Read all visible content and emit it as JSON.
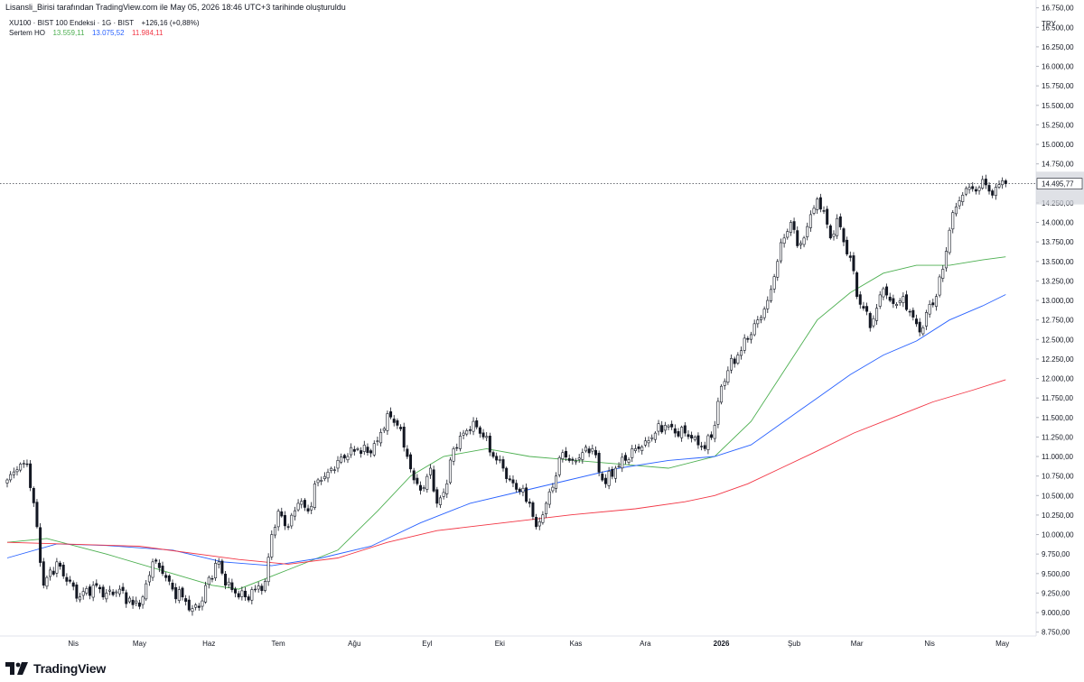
{
  "header": {
    "credit": "Lisansli_Birisi tarafından TradingView.com ile May 05, 2026 18:46 UTC+3 tarihinde oluşturuldu"
  },
  "legend": {
    "symbol_line": "XU100 · BIST 100 Endeksi · 1G · BIST",
    "change": "+126,16 (+0,88%)",
    "indicator_name": "Sertem HO",
    "ma_values": [
      {
        "text": "13.559,11",
        "color": "#4caf50"
      },
      {
        "text": "13.075,52",
        "color": "#2962ff"
      },
      {
        "text": "11.984,11",
        "color": "#f23645"
      }
    ]
  },
  "footer": {
    "brand": "TradingView",
    "logo_icon": "tradingview-logo-icon"
  },
  "chart_data": {
    "type": "candlestick",
    "currency": "TRY",
    "last_price_label": "14.495,77",
    "last_price": 14495.77,
    "ylim": [
      8700,
      16850
    ],
    "y_ticks": [
      {
        "v": 8750,
        "label": "8.750,00"
      },
      {
        "v": 9000,
        "label": "9.000,00"
      },
      {
        "v": 9250,
        "label": "9.250,00"
      },
      {
        "v": 9500,
        "label": "9.500,00"
      },
      {
        "v": 9750,
        "label": "9.750,00"
      },
      {
        "v": 10000,
        "label": "10.000,00"
      },
      {
        "v": 10250,
        "label": "10.250,00"
      },
      {
        "v": 10500,
        "label": "10.500,00"
      },
      {
        "v": 10750,
        "label": "10.750,00"
      },
      {
        "v": 11000,
        "label": "11.000,00"
      },
      {
        "v": 11250,
        "label": "11.250,00"
      },
      {
        "v": 11500,
        "label": "11.500,00"
      },
      {
        "v": 11750,
        "label": "11.750,00"
      },
      {
        "v": 12000,
        "label": "12.000,00"
      },
      {
        "v": 12250,
        "label": "12.250,00"
      },
      {
        "v": 12500,
        "label": "12.500,00"
      },
      {
        "v": 12750,
        "label": "12.750,00"
      },
      {
        "v": 13000,
        "label": "13.000,00"
      },
      {
        "v": 13250,
        "label": "13.250,00"
      },
      {
        "v": 13500,
        "label": "13.500,00"
      },
      {
        "v": 13750,
        "label": "13.750,00"
      },
      {
        "v": 14000,
        "label": "14.000,00"
      },
      {
        "v": 14250,
        "label": "14.250,00"
      },
      {
        "v": 14750,
        "label": "14.750,00"
      },
      {
        "v": 15000,
        "label": "15.000,00"
      },
      {
        "v": 15250,
        "label": "15.250,00"
      },
      {
        "v": 15500,
        "label": "15.500,00"
      },
      {
        "v": 15750,
        "label": "15.750,00"
      },
      {
        "v": 16000,
        "label": "16.000,00"
      },
      {
        "v": 16250,
        "label": "16.250,00"
      },
      {
        "v": 16500,
        "label": "16.500,00"
      },
      {
        "v": 16750,
        "label": "16.750,00"
      }
    ],
    "x_month_labels": [
      {
        "label": "Nis",
        "bar": 20
      },
      {
        "label": "May",
        "bar": 40
      },
      {
        "label": "Haz",
        "bar": 61
      },
      {
        "label": "Tem",
        "bar": 82
      },
      {
        "label": "Ağu",
        "bar": 105
      },
      {
        "label": "Eyl",
        "bar": 127
      },
      {
        "label": "Eki",
        "bar": 149
      },
      {
        "label": "Kas",
        "bar": 172
      },
      {
        "label": "Ara",
        "bar": 193
      },
      {
        "label": "2026",
        "bar": 216
      },
      {
        "label": "Şub",
        "bar": 238
      },
      {
        "label": "Mar",
        "bar": 257
      },
      {
        "label": "Nis",
        "bar": 279
      },
      {
        "label": "May",
        "bar": 301
      }
    ],
    "close_anchors": [
      [
        0,
        10700
      ],
      [
        3,
        10830
      ],
      [
        6,
        10900
      ],
      [
        9,
        10100
      ],
      [
        11,
        9350
      ],
      [
        12,
        9450
      ],
      [
        15,
        9650
      ],
      [
        18,
        9400
      ],
      [
        22,
        9200
      ],
      [
        26,
        9350
      ],
      [
        30,
        9250
      ],
      [
        34,
        9300
      ],
      [
        38,
        9100
      ],
      [
        41,
        9200
      ],
      [
        44,
        9650
      ],
      [
        47,
        9500
      ],
      [
        50,
        9300
      ],
      [
        53,
        9200
      ],
      [
        56,
        9050
      ],
      [
        59,
        9150
      ],
      [
        61,
        9450
      ],
      [
        64,
        9650
      ],
      [
        66,
        9350
      ],
      [
        69,
        9250
      ],
      [
        72,
        9200
      ],
      [
        75,
        9300
      ],
      [
        78,
        9400
      ],
      [
        80,
        10000
      ],
      [
        82,
        10300
      ],
      [
        85,
        10100
      ],
      [
        88,
        10400
      ],
      [
        91,
        10300
      ],
      [
        94,
        10700
      ],
      [
        97,
        10800
      ],
      [
        100,
        10950
      ],
      [
        103,
        11000
      ],
      [
        106,
        11100
      ],
      [
        109,
        11050
      ],
      [
        112,
        11200
      ],
      [
        115,
        11550
      ],
      [
        118,
        11400
      ],
      [
        121,
        11000
      ],
      [
        123,
        10700
      ],
      [
        126,
        10600
      ],
      [
        128,
        10850
      ],
      [
        130,
        10400
      ],
      [
        133,
        10650
      ],
      [
        135,
        11100
      ],
      [
        138,
        11300
      ],
      [
        141,
        11450
      ],
      [
        144,
        11250
      ],
      [
        147,
        11000
      ],
      [
        150,
        10850
      ],
      [
        152,
        10700
      ],
      [
        155,
        10550
      ],
      [
        158,
        10400
      ],
      [
        160,
        10100
      ],
      [
        163,
        10400
      ],
      [
        166,
        10750
      ],
      [
        168,
        11050
      ],
      [
        171,
        10950
      ],
      [
        174,
        11050
      ],
      [
        177,
        11100
      ],
      [
        179,
        10800
      ],
      [
        181,
        10650
      ],
      [
        184,
        10850
      ],
      [
        187,
        10950
      ],
      [
        190,
        11100
      ],
      [
        193,
        11200
      ],
      [
        196,
        11300
      ],
      [
        199,
        11400
      ],
      [
        202,
        11300
      ],
      [
        205,
        11300
      ],
      [
        208,
        11250
      ],
      [
        211,
        11100
      ],
      [
        214,
        11400
      ],
      [
        216,
        11900
      ],
      [
        218,
        12100
      ],
      [
        221,
        12300
      ],
      [
        224,
        12500
      ],
      [
        227,
        12750
      ],
      [
        230,
        13000
      ],
      [
        233,
        13500
      ],
      [
        235,
        13800
      ],
      [
        237,
        14000
      ],
      [
        239,
        13700
      ],
      [
        241,
        13800
      ],
      [
        243,
        14100
      ],
      [
        245,
        14300
      ],
      [
        247,
        14150
      ],
      [
        249,
        13800
      ],
      [
        251,
        14050
      ],
      [
        253,
        13750
      ],
      [
        255,
        13550
      ],
      [
        257,
        13050
      ],
      [
        259,
        12900
      ],
      [
        261,
        12650
      ],
      [
        263,
        12900
      ],
      [
        265,
        13150
      ],
      [
        267,
        13000
      ],
      [
        269,
        12950
      ],
      [
        271,
        13050
      ],
      [
        273,
        12850
      ],
      [
        275,
        12700
      ],
      [
        277,
        12650
      ],
      [
        279,
        12950
      ],
      [
        281,
        13050
      ],
      [
        283,
        13400
      ],
      [
        285,
        13900
      ],
      [
        287,
        14200
      ],
      [
        289,
        14350
      ],
      [
        291,
        14450
      ],
      [
        293,
        14400
      ],
      [
        295,
        14550
      ],
      [
        297,
        14400
      ],
      [
        299,
        14450
      ],
      [
        302,
        14496
      ]
    ],
    "moving_averages": [
      {
        "color": "#4caf50",
        "points": [
          [
            0,
            9900
          ],
          [
            12,
            9950
          ],
          [
            30,
            9750
          ],
          [
            50,
            9500
          ],
          [
            62,
            9350
          ],
          [
            70,
            9300
          ],
          [
            85,
            9550
          ],
          [
            100,
            9800
          ],
          [
            112,
            10300
          ],
          [
            122,
            10750
          ],
          [
            132,
            11000
          ],
          [
            145,
            11100
          ],
          [
            158,
            11000
          ],
          [
            172,
            10950
          ],
          [
            186,
            10900
          ],
          [
            200,
            10850
          ],
          [
            214,
            11000
          ],
          [
            225,
            11450
          ],
          [
            235,
            12100
          ],
          [
            245,
            12750
          ],
          [
            255,
            13100
          ],
          [
            265,
            13350
          ],
          [
            275,
            13450
          ],
          [
            285,
            13450
          ],
          [
            295,
            13520
          ],
          [
            302,
            13559
          ]
        ]
      },
      {
        "color": "#2962ff",
        "points": [
          [
            0,
            9700
          ],
          [
            15,
            9880
          ],
          [
            30,
            9860
          ],
          [
            50,
            9800
          ],
          [
            65,
            9650
          ],
          [
            80,
            9600
          ],
          [
            95,
            9700
          ],
          [
            110,
            9850
          ],
          [
            125,
            10150
          ],
          [
            140,
            10400
          ],
          [
            155,
            10550
          ],
          [
            170,
            10700
          ],
          [
            185,
            10850
          ],
          [
            200,
            10950
          ],
          [
            214,
            11000
          ],
          [
            225,
            11150
          ],
          [
            235,
            11450
          ],
          [
            245,
            11750
          ],
          [
            255,
            12050
          ],
          [
            265,
            12300
          ],
          [
            275,
            12480
          ],
          [
            285,
            12750
          ],
          [
            295,
            12930
          ],
          [
            302,
            13075
          ]
        ]
      },
      {
        "color": "#f23645",
        "points": [
          [
            0,
            9900
          ],
          [
            40,
            9850
          ],
          [
            70,
            9680
          ],
          [
            85,
            9620
          ],
          [
            100,
            9700
          ],
          [
            115,
            9900
          ],
          [
            130,
            10050
          ],
          [
            150,
            10150
          ],
          [
            170,
            10250
          ],
          [
            190,
            10330
          ],
          [
            205,
            10420
          ],
          [
            214,
            10500
          ],
          [
            224,
            10650
          ],
          [
            234,
            10850
          ],
          [
            244,
            11050
          ],
          [
            256,
            11300
          ],
          [
            268,
            11500
          ],
          [
            280,
            11700
          ],
          [
            292,
            11850
          ],
          [
            302,
            11984
          ]
        ]
      }
    ]
  }
}
